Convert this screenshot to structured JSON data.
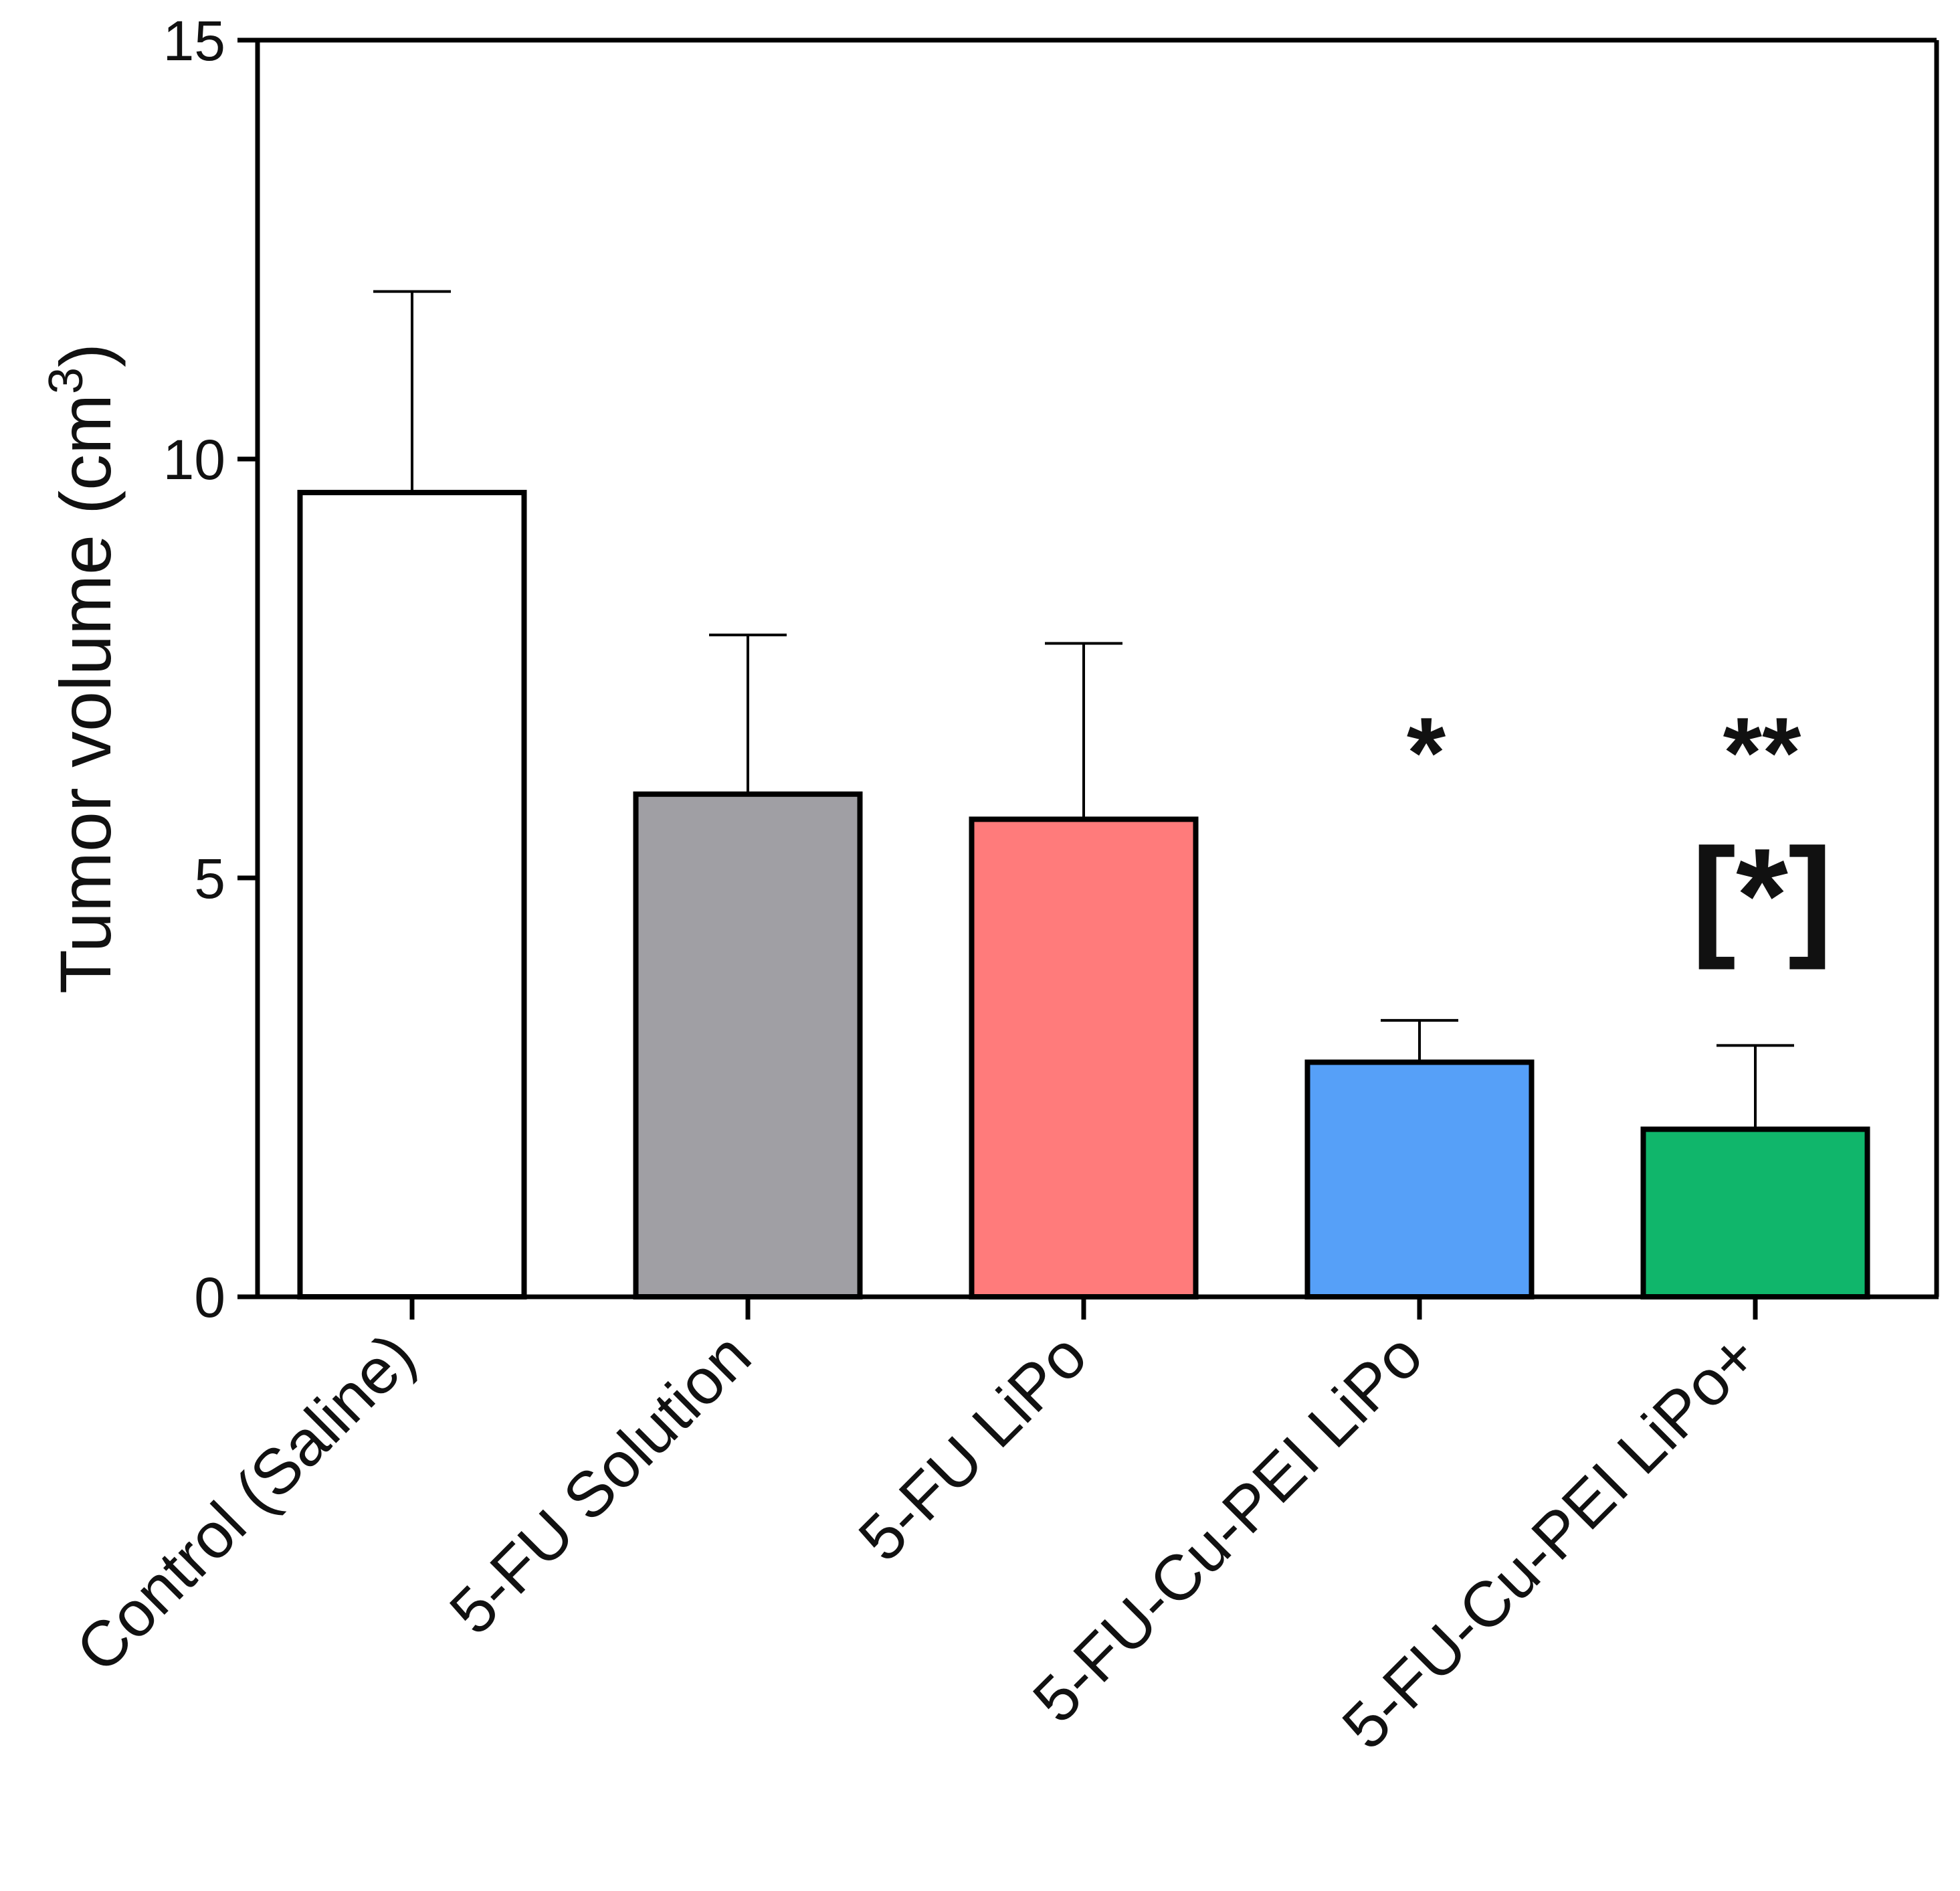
{
  "chart_data": {
    "type": "bar",
    "ylabel": "Tumor volume (cm",
    "ylabel_superscript": "3",
    "ylabel_close": ")",
    "xlabel": "",
    "ylim": [
      0,
      15
    ],
    "yticks": [
      0,
      5,
      10,
      15
    ],
    "ytick_labels": [
      "0",
      "5",
      "10",
      "15"
    ],
    "categories": [
      "Control (Saline)",
      "5-FU Solution",
      "5-FU LiPo",
      "5-FU-Cu-PEI LiPo",
      "5-FU-Cu-PEI LiPo+"
    ],
    "values": [
      9.6,
      6.0,
      5.7,
      2.8,
      2.0
    ],
    "errors": [
      2.4,
      1.9,
      2.1,
      0.5,
      1.0
    ],
    "colors": [
      "#ffffff",
      "#a09fa4",
      "#ff7b7b",
      "#56a0f8",
      "#10b66b"
    ],
    "annotations": [
      {
        "category": "5-FU-Cu-PEI LiPo",
        "text": "*",
        "y": 7.0
      },
      {
        "category": "5-FU-Cu-PEI LiPo+",
        "text": "**",
        "y": 7.0
      },
      {
        "category": "5-FU-Cu-PEI LiPo+",
        "text": "[*]",
        "y": 4.8
      }
    ]
  }
}
